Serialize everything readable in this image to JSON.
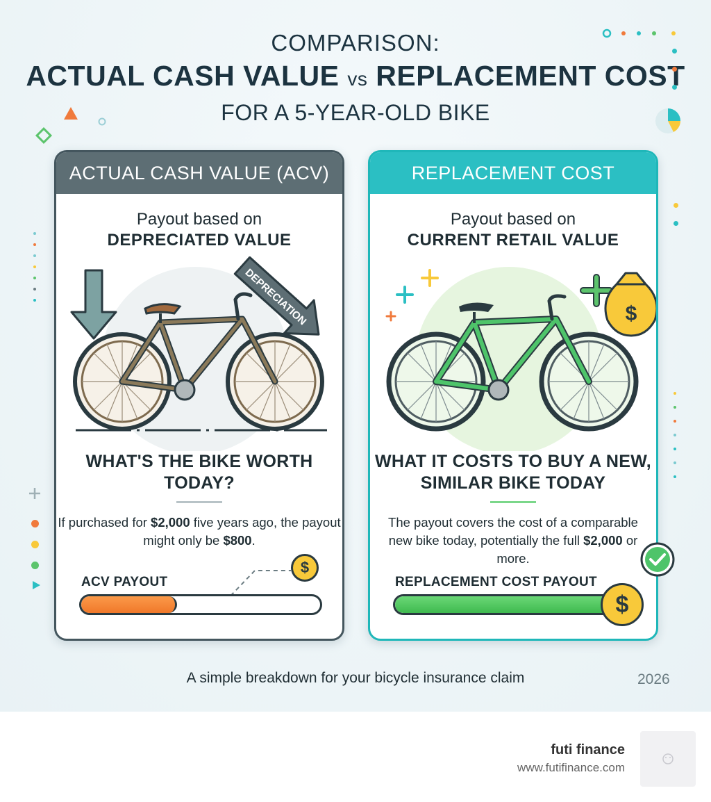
{
  "title": {
    "line1": "COMPARISON:",
    "line2_a": "ACTUAL CASH VALUE",
    "line2_vs": "vs",
    "line2_b": "REPLACEMENT COST",
    "line3": "FOR A 5-YEAR-OLD BIKE"
  },
  "acv": {
    "header": "ACTUAL CASH VALUE (ACV)",
    "sub1": "Payout based on",
    "sub2": "DEPRECIATED VALUE",
    "arrow_text": "DEPRECIATION",
    "question": "WHAT'S THE BIKE WORTH TODAY?",
    "desc_a": "If purchased for ",
    "desc_b": "$2,000",
    "desc_c": " five years ago, the payout might only be ",
    "desc_d": "$800",
    "desc_e": ".",
    "bar_label": "ACV PAYOUT",
    "bar_fraction": 0.4,
    "coin_symbol": "$",
    "bar_color": "#f0782a",
    "bike_color": "#8b7a5a"
  },
  "rc": {
    "header": "REPLACEMENT COST",
    "sub1": "Payout based on",
    "sub2": "CURRENT RETAIL VALUE",
    "question": "WHAT IT COSTS TO BUY A NEW, SIMILAR BIKE TODAY",
    "desc_a": "The payout covers the cost of a comparable new bike today, potentially the full ",
    "desc_b": "$2,000",
    "desc_c": " or more.",
    "bar_label": "REPLACEMENT COST PAYOUT",
    "bar_fraction": 1.0,
    "coin_symbol": "$",
    "bar_color": "#3fba4f",
    "bike_color": "#4ec46a"
  },
  "caption": "A simple breakdown for your bicycle insurance claim",
  "year": "2026",
  "footer": {
    "brand_name": "futi finance",
    "brand_url": "www.futifinance.com"
  }
}
